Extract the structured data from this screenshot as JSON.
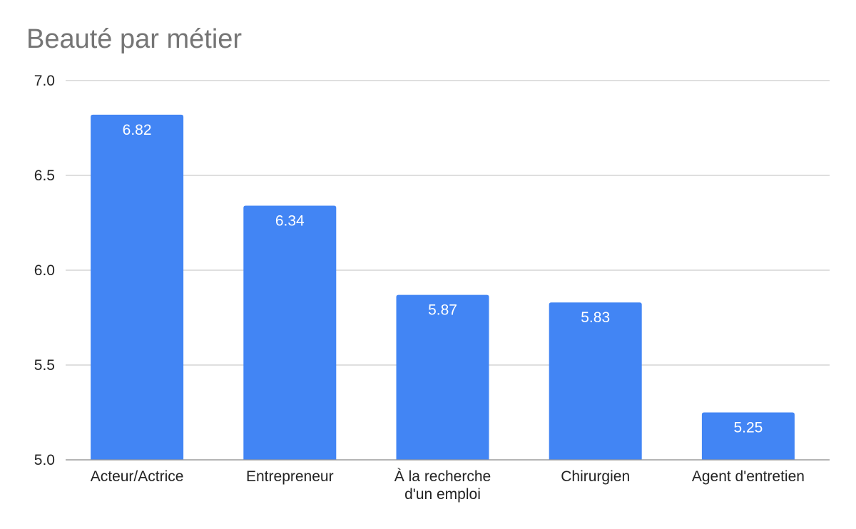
{
  "chart_data": {
    "type": "bar",
    "title": "Beauté par métier",
    "xlabel": "",
    "ylabel": "",
    "categories": [
      [
        "Acteur/Actrice"
      ],
      [
        "Entrepreneur"
      ],
      [
        "À la recherche",
        "d'un emploi"
      ],
      [
        "Chirurgien"
      ],
      [
        "Agent d'entretien"
      ]
    ],
    "values": [
      6.82,
      6.34,
      5.87,
      5.83,
      5.25
    ],
    "data_labels": [
      "6.82",
      "6.34",
      "5.87",
      "5.83",
      "5.25"
    ],
    "ylim": [
      5.0,
      7.0
    ],
    "yticks": [
      5.0,
      5.5,
      6.0,
      6.5,
      7.0
    ],
    "ytick_labels": [
      "5.0",
      "5.5",
      "6.0",
      "6.5",
      "7.0"
    ],
    "grid": true,
    "legend": "none",
    "bar_color": "#4285f4"
  }
}
